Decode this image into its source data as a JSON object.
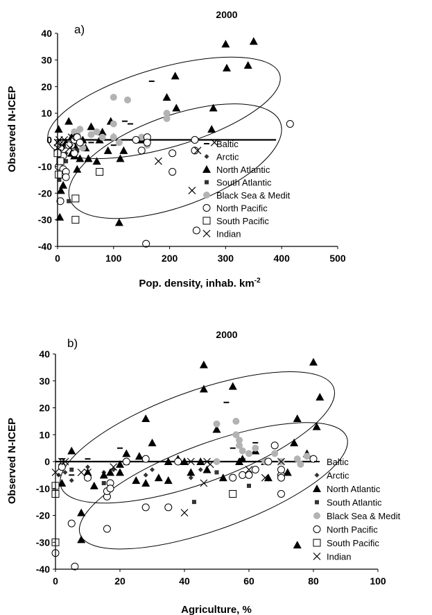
{
  "chart_data": [
    {
      "type": "scatter",
      "panel_label": "a)",
      "title": "2000",
      "xlabel": "Pop. density, inhab. km",
      "xlabel_sup": "-2",
      "ylabel": "Observed N-ICEP",
      "xlim": [
        0,
        500
      ],
      "ylim": [
        -40,
        40
      ],
      "xticks": [
        "0",
        "100",
        "200",
        "300",
        "400",
        "500"
      ],
      "yticks": [
        "40",
        "30",
        "20",
        "10",
        "0",
        "-10",
        "-20",
        "-30",
        "-40"
      ],
      "grid": false,
      "legend_position": "right",
      "reference_line": {
        "x": [
          0,
          390
        ],
        "y": 0
      },
      "ellipses": [
        {
          "cx": 190,
          "cy": 12,
          "rx": 215,
          "ry": 15,
          "angle_deg": 16
        },
        {
          "cx": 210,
          "cy": -8,
          "rx": 200,
          "ry": 17,
          "angle_deg": 20
        }
      ],
      "series": [
        {
          "name": "Baltic",
          "marker": "dash",
          "points": [
            [
              168,
              22
            ],
            [
              120,
              7
            ],
            [
              130,
              6
            ],
            [
              100,
              -2
            ],
            [
              20,
              0
            ],
            [
              60,
              -1
            ]
          ]
        },
        {
          "name": "Arctic",
          "marker": "diamond",
          "points": [
            [
              2,
              -6
            ],
            [
              5,
              -4
            ],
            [
              8,
              -8
            ],
            [
              10,
              -3
            ],
            [
              15,
              -5
            ],
            [
              3,
              -8
            ],
            [
              12,
              -2
            ]
          ]
        },
        {
          "name": "North Atlantic",
          "marker": "triangle",
          "points": [
            [
              2,
              4
            ],
            [
              20,
              7
            ],
            [
              6,
              -19
            ],
            [
              4,
              -29
            ],
            [
              10,
              -17
            ],
            [
              25,
              1
            ],
            [
              30,
              -6
            ],
            [
              40,
              -7
            ],
            [
              50,
              -3
            ],
            [
              60,
              5
            ],
            [
              70,
              -8
            ],
            [
              90,
              -4
            ],
            [
              110,
              -31
            ],
            [
              112,
              -7
            ],
            [
              118,
              -4
            ],
            [
              150,
              0
            ],
            [
              195,
              16
            ],
            [
              210,
              24
            ],
            [
              212,
              12
            ],
            [
              275,
              4
            ],
            [
              278,
              12
            ],
            [
              300,
              36
            ],
            [
              302,
              27
            ],
            [
              340,
              28
            ],
            [
              350,
              37
            ],
            [
              35,
              -11
            ],
            [
              45,
              0
            ],
            [
              75,
              0
            ],
            [
              80,
              3
            ],
            [
              95,
              7
            ],
            [
              100,
              1
            ],
            [
              55,
              -7
            ],
            [
              30,
              -2
            ],
            [
              25,
              -5
            ],
            [
              15,
              -1
            ]
          ]
        },
        {
          "name": "South Atlantic",
          "marker": "square-filled",
          "points": [
            [
              3,
              -15
            ],
            [
              20,
              -23
            ],
            [
              5,
              -13
            ],
            [
              15,
              -8
            ],
            [
              35,
              -4
            ],
            [
              8,
              -11
            ]
          ]
        },
        {
          "name": "Black Sea & Medit",
          "marker": "circle-filled",
          "points": [
            [
              100,
              16
            ],
            [
              125,
              15
            ],
            [
              30,
              3
            ],
            [
              35,
              2
            ],
            [
              40,
              4
            ],
            [
              100,
              6
            ],
            [
              195,
              10
            ],
            [
              195,
              8
            ],
            [
              45,
              -3
            ],
            [
              60,
              2
            ],
            [
              70,
              3
            ],
            [
              80,
              1
            ],
            [
              100,
              1
            ],
            [
              110,
              -1
            ],
            [
              140,
              0
            ],
            [
              150,
              1
            ],
            [
              160,
              -2
            ]
          ]
        },
        {
          "name": "North Pacific",
          "marker": "circle-open",
          "points": [
            [
              5,
              -23
            ],
            [
              2,
              -10
            ],
            [
              5,
              -8
            ],
            [
              10,
              -11
            ],
            [
              15,
              -12
            ],
            [
              15,
              -14
            ],
            [
              25,
              -2
            ],
            [
              30,
              0
            ],
            [
              35,
              1
            ],
            [
              40,
              -1
            ],
            [
              140,
              0
            ],
            [
              150,
              -4
            ],
            [
              160,
              1
            ],
            [
              160,
              -1
            ],
            [
              205,
              -5
            ],
            [
              205,
              -12
            ],
            [
              245,
              0
            ],
            [
              245,
              -4
            ],
            [
              248,
              -34
            ],
            [
              158,
              -39
            ],
            [
              415,
              6
            ],
            [
              5,
              -3
            ],
            [
              10,
              -6
            ],
            [
              20,
              -2
            ],
            [
              30,
              -5
            ]
          ]
        },
        {
          "name": "South Pacific",
          "marker": "square-open",
          "points": [
            [
              2,
              -13
            ],
            [
              32,
              -30
            ],
            [
              32,
              -22
            ],
            [
              75,
              -12
            ],
            [
              5,
              -8
            ],
            [
              0,
              -5
            ]
          ]
        },
        {
          "name": "Indian",
          "marker": "x",
          "points": [
            [
              0,
              -3
            ],
            [
              3,
              0
            ],
            [
              12,
              0
            ],
            [
              22,
              -3
            ],
            [
              25,
              1
            ],
            [
              180,
              -8
            ],
            [
              240,
              -19
            ],
            [
              250,
              -4
            ],
            [
              280,
              -1
            ],
            [
              0,
              -1
            ],
            [
              8,
              -2
            ]
          ]
        }
      ]
    },
    {
      "type": "scatter",
      "panel_label": "b)",
      "title": "2000",
      "xlabel": "Agriculture, %",
      "xlabel_sup": "",
      "ylabel": "Observed N-ICEP",
      "xlim": [
        0,
        100
      ],
      "ylim": [
        -40,
        40
      ],
      "xticks": [
        "0",
        "20",
        "40",
        "60",
        "80",
        "100"
      ],
      "yticks": [
        "40",
        "30",
        "20",
        "10",
        "0",
        "-10",
        "-20",
        "-30",
        "-40"
      ],
      "grid": false,
      "legend_position": "right",
      "reference_line": {
        "x": [
          0,
          80
        ],
        "y": 0
      },
      "ellipses": [
        {
          "cx": 44,
          "cy": 9,
          "rx": 45,
          "ry": 17,
          "angle_deg": 20
        },
        {
          "cx": 49,
          "cy": -9,
          "rx": 44,
          "ry": 16,
          "angle_deg": 20
        }
      ],
      "series": [
        {
          "name": "Baltic",
          "marker": "dash",
          "points": [
            [
              2,
              1
            ],
            [
              10,
              1
            ],
            [
              20,
              5
            ],
            [
              40,
              0
            ],
            [
              53,
              22
            ],
            [
              55,
              5
            ],
            [
              62,
              7
            ],
            [
              70,
              0
            ],
            [
              48,
              0
            ],
            [
              22,
              -1
            ],
            [
              5,
              -5
            ],
            [
              58,
              1
            ]
          ]
        },
        {
          "name": "Arctic",
          "marker": "diamond",
          "points": [
            [
              1,
              -5
            ],
            [
              3,
              -4
            ],
            [
              5,
              -7
            ],
            [
              15,
              -4
            ],
            [
              28,
              -5
            ],
            [
              30,
              -3
            ],
            [
              42,
              -6
            ],
            [
              10,
              -2
            ],
            [
              45,
              -3
            ],
            [
              18,
              -3
            ]
          ]
        },
        {
          "name": "North Atlantic",
          "marker": "triangle",
          "points": [
            [
              5,
              4
            ],
            [
              8,
              -19
            ],
            [
              8,
              -29
            ],
            [
              10,
              -4
            ],
            [
              12,
              -9
            ],
            [
              17,
              -4
            ],
            [
              20,
              -1
            ],
            [
              22,
              3
            ],
            [
              25,
              -7
            ],
            [
              28,
              -8
            ],
            [
              28,
              16
            ],
            [
              30,
              7
            ],
            [
              32,
              -6
            ],
            [
              35,
              -7
            ],
            [
              38,
              1
            ],
            [
              42,
              -4
            ],
            [
              45,
              0
            ],
            [
              46,
              27
            ],
            [
              46,
              36
            ],
            [
              50,
              12
            ],
            [
              55,
              28
            ],
            [
              57,
              0
            ],
            [
              62,
              4
            ],
            [
              65,
              0
            ],
            [
              75,
              -31
            ],
            [
              75,
              16
            ],
            [
              78,
              3
            ],
            [
              80,
              37
            ],
            [
              81,
              13
            ],
            [
              82,
              24
            ],
            [
              26,
              2
            ],
            [
              35,
              0
            ],
            [
              40,
              0
            ],
            [
              58,
              1
            ],
            [
              72,
              -4
            ],
            [
              2,
              -8
            ],
            [
              15,
              -5
            ],
            [
              20,
              -4
            ],
            [
              47,
              -3
            ],
            [
              52,
              -6
            ],
            [
              66,
              -6
            ],
            [
              74,
              7
            ]
          ]
        },
        {
          "name": "South Atlantic",
          "marker": "square-filled",
          "points": [
            [
              15,
              -8
            ],
            [
              43,
              -15
            ],
            [
              60,
              -9
            ],
            [
              5,
              -3
            ],
            [
              50,
              -4
            ]
          ]
        },
        {
          "name": "Black Sea & Medit",
          "marker": "circle-filled",
          "points": [
            [
              50,
              14
            ],
            [
              56,
              10
            ],
            [
              56,
              15
            ],
            [
              57,
              8
            ],
            [
              57,
              6
            ],
            [
              58,
              4
            ],
            [
              62,
              5
            ],
            [
              65,
              0
            ],
            [
              68,
              3
            ],
            [
              70,
              0
            ],
            [
              75,
              1
            ],
            [
              78,
              2
            ],
            [
              76,
              -1
            ],
            [
              50,
              0
            ],
            [
              60,
              3
            ]
          ]
        },
        {
          "name": "North Pacific",
          "marker": "circle-open",
          "points": [
            [
              0,
              -34
            ],
            [
              5,
              -23
            ],
            [
              6,
              -39
            ],
            [
              16,
              -25
            ],
            [
              16,
              -13
            ],
            [
              16,
              -11
            ],
            [
              17,
              -8
            ],
            [
              17,
              -10
            ],
            [
              28,
              -17
            ],
            [
              35,
              -17
            ],
            [
              58,
              -5
            ],
            [
              60,
              -5
            ],
            [
              62,
              -3
            ],
            [
              66,
              0
            ],
            [
              68,
              6
            ],
            [
              70,
              -5
            ],
            [
              70,
              -6
            ],
            [
              70,
              -12
            ],
            [
              70,
              -3
            ],
            [
              22,
              0
            ],
            [
              28,
              1
            ],
            [
              38,
              0
            ],
            [
              2,
              -2
            ],
            [
              10,
              -6
            ],
            [
              55,
              -6
            ],
            [
              80,
              1
            ]
          ]
        },
        {
          "name": "South Pacific",
          "marker": "square-open",
          "points": [
            [
              0,
              -30
            ],
            [
              0,
              -12
            ],
            [
              0,
              -9
            ],
            [
              55,
              -12
            ]
          ]
        },
        {
          "name": "Indian",
          "marker": "x",
          "points": [
            [
              0,
              -4
            ],
            [
              2,
              0
            ],
            [
              3,
              0
            ],
            [
              8,
              -4
            ],
            [
              18,
              -2
            ],
            [
              40,
              -19
            ],
            [
              46,
              -8
            ],
            [
              47,
              0
            ],
            [
              48,
              -1
            ],
            [
              60,
              -3
            ],
            [
              65,
              -6
            ],
            [
              70,
              0
            ],
            [
              42,
              0
            ],
            [
              10,
              -4
            ]
          ]
        }
      ]
    }
  ]
}
